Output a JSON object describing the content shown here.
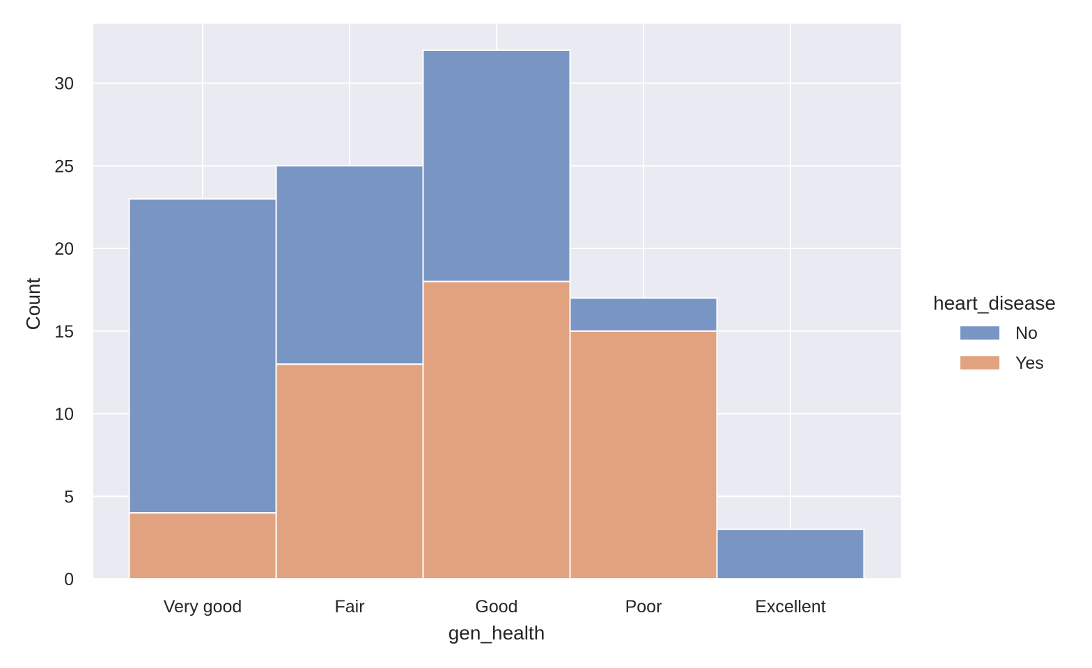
{
  "chart_data": {
    "type": "bar",
    "stacked": true,
    "title": "",
    "xlabel": "gen_health",
    "ylabel": "Count",
    "categories": [
      "Very good",
      "Fair",
      "Good",
      "Poor",
      "Excellent"
    ],
    "series": [
      {
        "name": "No",
        "values": [
          19,
          12,
          14,
          2,
          3
        ]
      },
      {
        "name": "Yes",
        "values": [
          4,
          13,
          18,
          15,
          0
        ]
      }
    ],
    "stack_order_bottom_to_top": [
      "Yes",
      "No"
    ],
    "ylim": [
      0,
      33.6
    ],
    "yticks": [
      0,
      5,
      10,
      15,
      20,
      25,
      30
    ],
    "grid": true,
    "legend": {
      "title": "heart_disease",
      "entries": [
        "No",
        "Yes"
      ],
      "position": "right"
    },
    "colors": {
      "No": "#7592c1",
      "Yes": "#e09f7c",
      "background": "#eaeaf2",
      "grid": "#ffffff"
    }
  }
}
